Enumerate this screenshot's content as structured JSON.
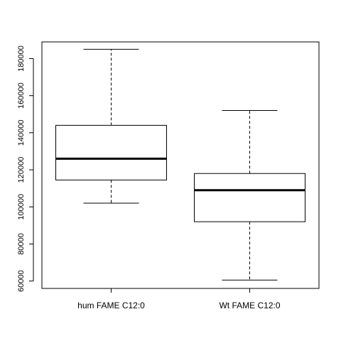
{
  "chart_data": {
    "type": "boxplot",
    "title": "",
    "xlabel": "",
    "ylabel": "",
    "ylim": [
      56000,
      189000
    ],
    "yticks": [
      60000,
      80000,
      100000,
      120000,
      140000,
      160000,
      180000
    ],
    "ytick_labels": [
      "60000",
      "80000",
      "100000",
      "120000",
      "140000",
      "160000",
      "180000"
    ],
    "grid": false,
    "legend": "none",
    "categories": [
      "hum FAME C12:0",
      "Wt FAME C12:0"
    ],
    "boxes": [
      {
        "min": 102000,
        "q1": 114500,
        "median": 126000,
        "q3": 144000,
        "max": 185000
      },
      {
        "min": 60500,
        "q1": 92000,
        "median": 109000,
        "q3": 118000,
        "max": 152000
      }
    ]
  }
}
